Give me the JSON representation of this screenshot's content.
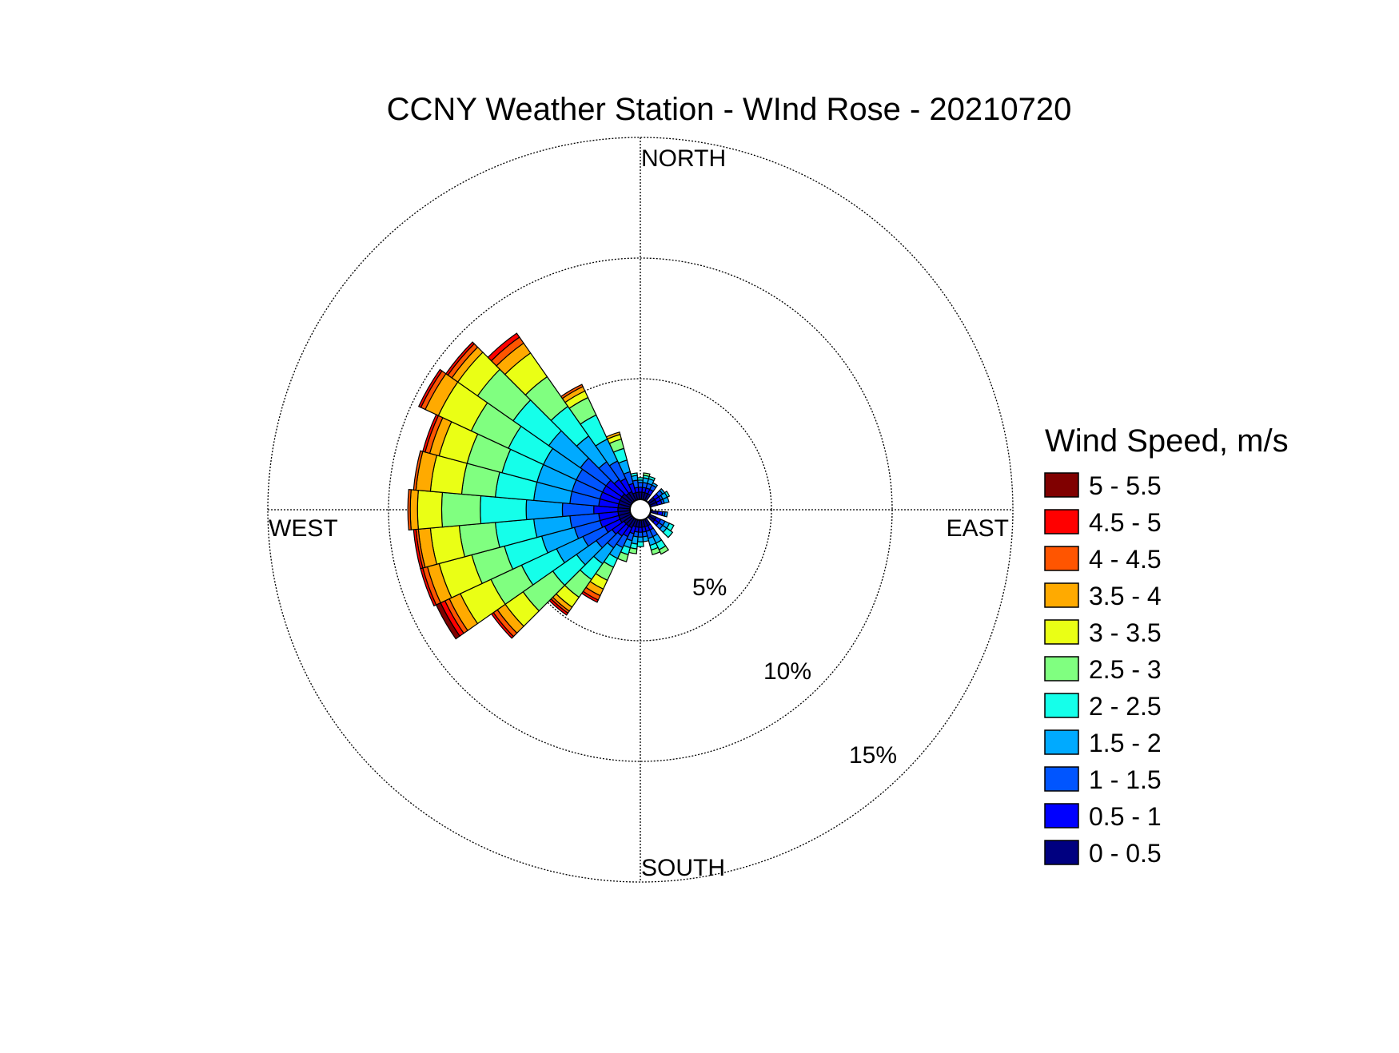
{
  "chart_data": {
    "type": "windrose",
    "title": "CCNY Weather Station - WInd Rose - 20210720",
    "directions": {
      "north": "NORTH",
      "south": "SOUTH",
      "east": "EAST",
      "west": "WEST"
    },
    "rings": [
      {
        "value": 5,
        "label": "5%"
      },
      {
        "value": 10,
        "label": "10%"
      },
      {
        "value": 15,
        "label": "15%"
      }
    ],
    "grid": true,
    "legend": {
      "title": "Wind Speed, m/s",
      "placement": "right",
      "items": [
        {
          "label": "5 - 5.5",
          "color": "#800000"
        },
        {
          "label": "4.5 - 5",
          "color": "#ff0000"
        },
        {
          "label": "4 - 4.5",
          "color": "#ff5500"
        },
        {
          "label": "3.5 - 4",
          "color": "#ffaa00"
        },
        {
          "label": "3 - 3.5",
          "color": "#eaff15"
        },
        {
          "label": "2.5 - 3",
          "color": "#80ff80"
        },
        {
          "label": "2 - 2.5",
          "color": "#15ffea"
        },
        {
          "label": "1.5 - 2",
          "color": "#00aaff"
        },
        {
          "label": "1 - 1.5",
          "color": "#0055ff"
        },
        {
          "label": "0.5 - 1",
          "color": "#0000ff"
        },
        {
          "label": "0 - 0.5",
          "color": "#000080"
        }
      ]
    },
    "sector_width_deg": 10,
    "bin_order": [
      "0 - 0.5",
      "0.5 - 1",
      "1 - 1.5",
      "1.5 - 2",
      "2 - 2.5",
      "2.5 - 3",
      "3 - 3.5",
      "3.5 - 4",
      "4 - 4.5",
      "4.5 - 5",
      "5 - 5.5"
    ],
    "sectors": [
      {
        "direction_deg": 10,
        "cumulative_percent": [
          0.3,
          0.5,
          0.7,
          0.9,
          1.0,
          1.1
        ]
      },
      {
        "direction_deg": 20,
        "cumulative_percent": [
          0.3,
          0.5,
          0.7,
          0.9,
          1.0
        ]
      },
      {
        "direction_deg": 30,
        "cumulative_percent": [
          0.3,
          0.5,
          0.7,
          0.8
        ]
      },
      {
        "direction_deg": 50,
        "cumulative_percent": [
          0.3,
          0.5,
          0.7,
          0.8
        ]
      },
      {
        "direction_deg": 60,
        "cumulative_percent": [
          0.3,
          0.5,
          0.6,
          0.8,
          0.9
        ]
      },
      {
        "direction_deg": 70,
        "cumulative_percent": [
          0.3,
          0.5,
          0.6,
          0.8
        ]
      },
      {
        "direction_deg": 100,
        "cumulative_percent": [
          0.3,
          0.5,
          0.6,
          0.7
        ]
      },
      {
        "direction_deg": 120,
        "cumulative_percent": [
          0.3,
          0.5,
          0.7,
          0.9,
          1.1
        ]
      },
      {
        "direction_deg": 130,
        "cumulative_percent": [
          0.3,
          0.5,
          0.7,
          0.9,
          1.2
        ]
      },
      {
        "direction_deg": 150,
        "cumulative_percent": [
          0.3,
          0.5,
          0.8,
          1.1,
          1.4,
          1.6
        ]
      },
      {
        "direction_deg": 160,
        "cumulative_percent": [
          0.3,
          0.5,
          0.8,
          1.1,
          1.3,
          1.5
        ]
      },
      {
        "direction_deg": 170,
        "cumulative_percent": [
          0.3,
          0.5,
          0.7,
          0.9
        ]
      },
      {
        "direction_deg": 180,
        "cumulative_percent": [
          0.3,
          0.5,
          0.7,
          0.9,
          1.1
        ]
      },
      {
        "direction_deg": 190,
        "cumulative_percent": [
          0.3,
          0.5,
          0.7,
          1.0,
          1.2,
          1.4
        ]
      },
      {
        "direction_deg": 200,
        "cumulative_percent": [
          0.3,
          0.6,
          0.9,
          1.2,
          1.5,
          1.8
        ]
      },
      {
        "direction_deg": 210,
        "cumulative_percent": [
          0.4,
          0.8,
          1.3,
          1.8,
          2.2,
          2.8,
          3.2,
          3.5,
          3.7,
          3.8
        ]
      },
      {
        "direction_deg": 220,
        "cumulative_percent": [
          0.4,
          0.9,
          1.5,
          2.3,
          3.1,
          4.0,
          4.5,
          4.7,
          4.8,
          4.9
        ]
      },
      {
        "direction_deg": 230,
        "cumulative_percent": [
          0.4,
          1.0,
          1.8,
          2.8,
          4.0,
          5.5,
          6.4,
          6.8,
          7.0,
          7.1
        ]
      },
      {
        "direction_deg": 240,
        "cumulative_percent": [
          0.5,
          1.2,
          2.2,
          3.4,
          5.0,
          6.4,
          7.8,
          8.3,
          8.5,
          8.7,
          8.9
        ]
      },
      {
        "direction_deg": 250,
        "cumulative_percent": [
          0.5,
          1.3,
          2.4,
          3.8,
          5.4,
          6.8,
          8.2,
          8.7,
          8.9,
          9.0
        ]
      },
      {
        "direction_deg": 260,
        "cumulative_percent": [
          0.5,
          1.3,
          2.5,
          4.0,
          5.6,
          7.1,
          8.3,
          8.8,
          8.9,
          9.0
        ]
      },
      {
        "direction_deg": 270,
        "cumulative_percent": [
          0.5,
          1.5,
          2.8,
          4.3,
          6.2,
          7.8,
          8.8,
          9.1,
          9.2
        ]
      },
      {
        "direction_deg": 280,
        "cumulative_percent": [
          0.5,
          1.3,
          2.5,
          4.0,
          5.6,
          7.0,
          8.3,
          8.9,
          9.0
        ]
      },
      {
        "direction_deg": 290,
        "cumulative_percent": [
          0.5,
          1.3,
          2.5,
          4.0,
          5.5,
          7.0,
          8.2,
          8.6,
          8.8,
          8.9
        ]
      },
      {
        "direction_deg": 300,
        "cumulative_percent": [
          0.5,
          1.3,
          2.5,
          4.0,
          5.6,
          7.3,
          8.8,
          9.4,
          9.6,
          9.7
        ]
      },
      {
        "direction_deg": 310,
        "cumulative_percent": [
          0.5,
          1.3,
          2.6,
          4.2,
          6.0,
          7.8,
          8.8,
          9.1,
          9.3,
          9.4
        ]
      },
      {
        "direction_deg": 320,
        "cumulative_percent": [
          0.4,
          1.1,
          2.0,
          3.3,
          4.8,
          6.3,
          7.5,
          8.0,
          8.3,
          8.5
        ]
      },
      {
        "direction_deg": 330,
        "cumulative_percent": [
          0.4,
          1.0,
          1.8,
          2.8,
          3.9,
          4.7,
          5.0,
          5.2,
          5.3
        ]
      },
      {
        "direction_deg": 340,
        "cumulative_percent": [
          0.3,
          0.7,
          1.2,
          1.7,
          2.2,
          2.6,
          2.8,
          2.9
        ]
      },
      {
        "direction_deg": 350,
        "cumulative_percent": [
          0.3,
          0.5,
          0.8,
          1.0,
          1.1
        ]
      },
      {
        "direction_deg": 360,
        "cumulative_percent": [
          0.3,
          0.5,
          0.7,
          0.8,
          0.9
        ]
      }
    ]
  }
}
